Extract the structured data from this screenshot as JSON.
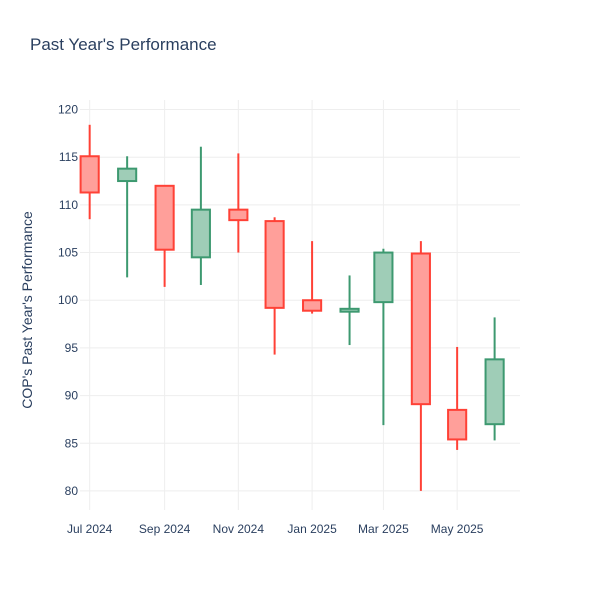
{
  "chart_data": {
    "type": "candlestick",
    "title": "Past Year's Performance",
    "ylabel": "COP's Past Year's Performance",
    "xlabel": "",
    "ylim": [
      78,
      121
    ],
    "xlim": [
      "2024-06-23",
      "2025-06-22"
    ],
    "grid": true,
    "legend": "none",
    "y_ticks": [
      80,
      85,
      90,
      95,
      100,
      105,
      110,
      115,
      120
    ],
    "x_ticks": [
      {
        "date": "2024-07-01",
        "label": "Jul 2024"
      },
      {
        "date": "2024-09-01",
        "label": "Sep 2024"
      },
      {
        "date": "2024-11-01",
        "label": "Nov 2024"
      },
      {
        "date": "2025-01-01",
        "label": "Jan 2025"
      },
      {
        "date": "2025-03-01",
        "label": "Mar 2025"
      },
      {
        "date": "2025-05-01",
        "label": "May 2025"
      }
    ],
    "colors": {
      "increasing_line": "#3d9970",
      "increasing_fill": "#9fcdb7",
      "decreasing_line": "#ff4136",
      "decreasing_fill": "#ff9f9a",
      "grid": "#eeeeee",
      "text": "#2a3f5f"
    },
    "candles": [
      {
        "date": "2024-07-01",
        "open": 115.1,
        "high": 118.4,
        "low": 108.5,
        "close": 111.3
      },
      {
        "date": "2024-08-01",
        "open": 112.5,
        "high": 115.1,
        "low": 102.4,
        "close": 113.8
      },
      {
        "date": "2024-09-01",
        "open": 112.0,
        "high": 112.0,
        "low": 101.4,
        "close": 105.3
      },
      {
        "date": "2024-10-01",
        "open": 104.5,
        "high": 116.1,
        "low": 101.6,
        "close": 109.5
      },
      {
        "date": "2024-11-01",
        "open": 109.5,
        "high": 115.4,
        "low": 105.0,
        "close": 108.4
      },
      {
        "date": "2024-12-01",
        "open": 108.3,
        "high": 108.7,
        "low": 94.3,
        "close": 99.2
      },
      {
        "date": "2025-01-01",
        "open": 100.0,
        "high": 106.2,
        "low": 98.6,
        "close": 98.9
      },
      {
        "date": "2025-02-01",
        "open": 98.8,
        "high": 102.6,
        "low": 95.3,
        "close": 99.1
      },
      {
        "date": "2025-03-01",
        "open": 99.8,
        "high": 105.4,
        "low": 86.9,
        "close": 105.0
      },
      {
        "date": "2025-04-01",
        "open": 104.9,
        "high": 106.2,
        "low": 80.0,
        "close": 89.1
      },
      {
        "date": "2025-05-01",
        "open": 88.5,
        "high": 95.1,
        "low": 84.3,
        "close": 85.4
      },
      {
        "date": "2025-06-01",
        "open": 87.0,
        "high": 98.2,
        "low": 85.3,
        "close": 93.8
      }
    ]
  }
}
